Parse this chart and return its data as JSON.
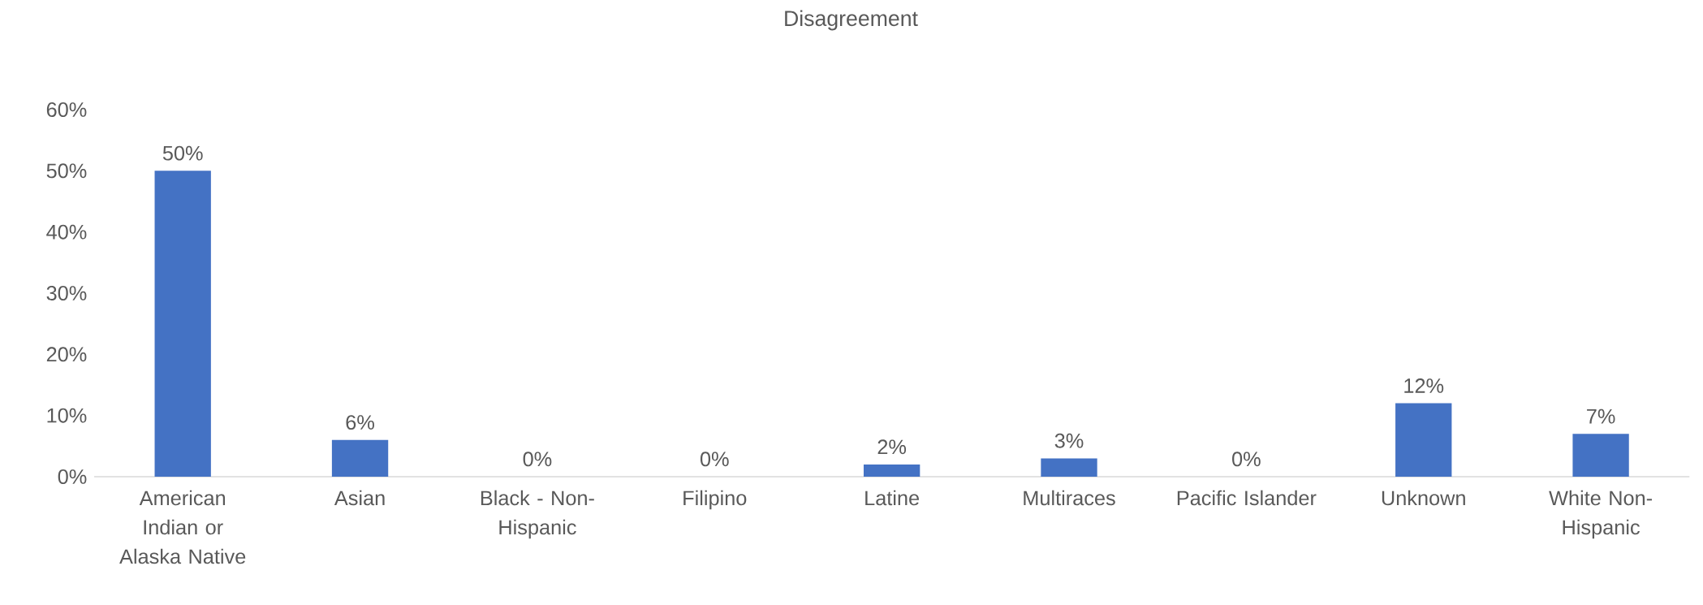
{
  "chart_data": {
    "type": "bar",
    "title": "Disagreement",
    "categories": [
      "American Indian or Alaska Native",
      "Asian",
      "Black - Non-Hispanic",
      "Filipino",
      "Latine",
      "Multiraces",
      "Pacific Islander",
      "Unknown",
      "White Non-Hispanic"
    ],
    "values": [
      50,
      6,
      0,
      0,
      2,
      3,
      0,
      12,
      7
    ],
    "value_labels": [
      "50%",
      "6%",
      "0%",
      "0%",
      "2%",
      "3%",
      "0%",
      "12%",
      "7%"
    ],
    "color": "#4472c4",
    "ylim": [
      0,
      60
    ],
    "yticks": [
      {
        "value": 0,
        "label": "0%"
      },
      {
        "value": 10,
        "label": "10%"
      },
      {
        "value": 20,
        "label": "20%"
      },
      {
        "value": 30,
        "label": "30%"
      },
      {
        "value": 40,
        "label": "40%"
      },
      {
        "value": 50,
        "label": "50%"
      },
      {
        "value": 60,
        "label": "60%"
      }
    ]
  }
}
